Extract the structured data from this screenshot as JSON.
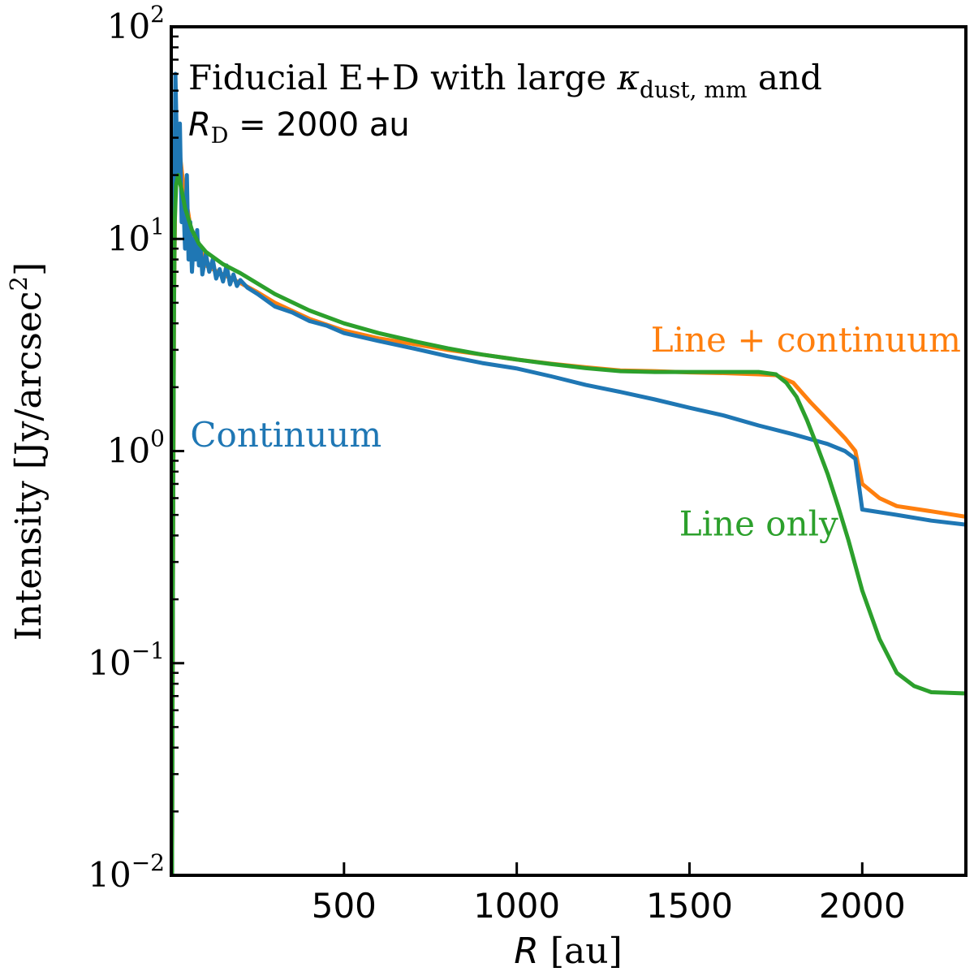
{
  "chart_data": {
    "type": "line",
    "annotation": {
      "line1_prefix": "Fiducial E+D  with large ",
      "kappa_symbol": "κ",
      "kappa_subscript": "dust, mm",
      "line1_suffix": " and",
      "line2_symbol": "R",
      "line2_subscript": "D",
      "line2_suffix": " = 2000 au"
    },
    "xlabel": {
      "symbol": "R",
      "unit": " [au]"
    },
    "ylabel": {
      "text": "Intensity [Jy/arcsec",
      "sup": "2",
      "close": "]"
    },
    "xlim": [
      0,
      2300
    ],
    "ylim": [
      0.01,
      100
    ],
    "yscale": "log",
    "grid": false,
    "x_ticks": [
      500,
      1000,
      1500,
      2000
    ],
    "x_tick_labels": [
      "500",
      "1000",
      "1500",
      "2000"
    ],
    "y_ticks": [
      0.01,
      0.1,
      1,
      10,
      100
    ],
    "y_tick_labels": [
      {
        "base": "10",
        "exp": "−2"
      },
      {
        "base": "10",
        "exp": "−1"
      },
      {
        "base": "10",
        "exp": "0"
      },
      {
        "base": "10",
        "exp": "1"
      },
      {
        "base": "10",
        "exp": "2"
      }
    ],
    "series": [
      {
        "name": "Line + continuum",
        "color": "#ff7f0e",
        "x": [
          2,
          5,
          8,
          12,
          18,
          25,
          35,
          50,
          60,
          75,
          90,
          100,
          120,
          150,
          200,
          250,
          300,
          400,
          500,
          600,
          700,
          800,
          900,
          1000,
          1100,
          1200,
          1300,
          1400,
          1500,
          1600,
          1700,
          1750,
          1800,
          1850,
          1900,
          1950,
          1980,
          2000,
          2050,
          2100,
          2200,
          2300
        ],
        "y": [
          0.01,
          0.3,
          5,
          20,
          30,
          25,
          18,
          13,
          10,
          9,
          8.5,
          7.5,
          7.2,
          6.8,
          6.2,
          5.6,
          5.0,
          4.2,
          3.7,
          3.4,
          3.2,
          3.0,
          2.85,
          2.7,
          2.58,
          2.48,
          2.4,
          2.38,
          2.35,
          2.33,
          2.3,
          2.28,
          2.1,
          1.7,
          1.4,
          1.15,
          1.0,
          0.7,
          0.6,
          0.55,
          0.52,
          0.49
        ]
      },
      {
        "name": "Continuum",
        "color": "#1f77b4",
        "x": [
          2,
          5,
          8,
          12,
          18,
          25,
          30,
          35,
          40,
          45,
          50,
          55,
          60,
          65,
          70,
          75,
          80,
          85,
          90,
          100,
          110,
          120,
          130,
          140,
          150,
          160,
          170,
          180,
          190,
          200,
          220,
          250,
          300,
          350,
          400,
          450,
          500,
          600,
          700,
          800,
          900,
          1000,
          1100,
          1200,
          1300,
          1400,
          1500,
          1600,
          1700,
          1800,
          1900,
          1950,
          1980,
          2000,
          2100,
          2200,
          2300
        ],
        "y": [
          0.01,
          0.5,
          8,
          60,
          20,
          35,
          12,
          15,
          9,
          20,
          8,
          12,
          7,
          10,
          8,
          11,
          7.5,
          9,
          6.8,
          8.5,
          7,
          8,
          6.5,
          7.2,
          6.3,
          7.5,
          6.1,
          6.8,
          6.0,
          6.4,
          5.9,
          5.5,
          4.8,
          4.5,
          4.1,
          3.9,
          3.6,
          3.3,
          3.05,
          2.8,
          2.6,
          2.45,
          2.25,
          2.05,
          1.9,
          1.75,
          1.6,
          1.47,
          1.32,
          1.2,
          1.08,
          1.0,
          0.92,
          0.53,
          0.5,
          0.47,
          0.45
        ]
      },
      {
        "name": "Line only",
        "color": "#2ca02c",
        "x": [
          2,
          4,
          6,
          8,
          10,
          14,
          20,
          30,
          40,
          60,
          80,
          100,
          150,
          200,
          300,
          400,
          500,
          600,
          700,
          800,
          900,
          1000,
          1100,
          1200,
          1300,
          1400,
          1500,
          1600,
          1700,
          1750,
          1780,
          1810,
          1840,
          1870,
          1900,
          1930,
          1960,
          2000,
          2050,
          2100,
          2150,
          2200,
          2300
        ],
        "y": [
          0.01,
          0.1,
          1,
          5,
          12,
          18,
          20,
          17,
          14,
          11,
          9.5,
          8.7,
          7.6,
          6.9,
          5.5,
          4.6,
          4.0,
          3.6,
          3.3,
          3.05,
          2.85,
          2.7,
          2.57,
          2.46,
          2.38,
          2.36,
          2.36,
          2.36,
          2.36,
          2.3,
          2.1,
          1.8,
          1.4,
          1.05,
          0.78,
          0.55,
          0.38,
          0.22,
          0.13,
          0.09,
          0.078,
          0.073,
          0.072
        ]
      }
    ],
    "series_labels": [
      {
        "text": "Line + continuum",
        "color": "#ff7f0e",
        "x": 2300,
        "y": 2.95,
        "anchor": "end"
      },
      {
        "text": "Continuum",
        "color": "#1f77b4",
        "x": 55,
        "y": 1.05,
        "anchor": "start"
      },
      {
        "text": "Line only",
        "color": "#2ca02c",
        "x": 1470,
        "y": 0.4,
        "anchor": "start"
      }
    ]
  }
}
